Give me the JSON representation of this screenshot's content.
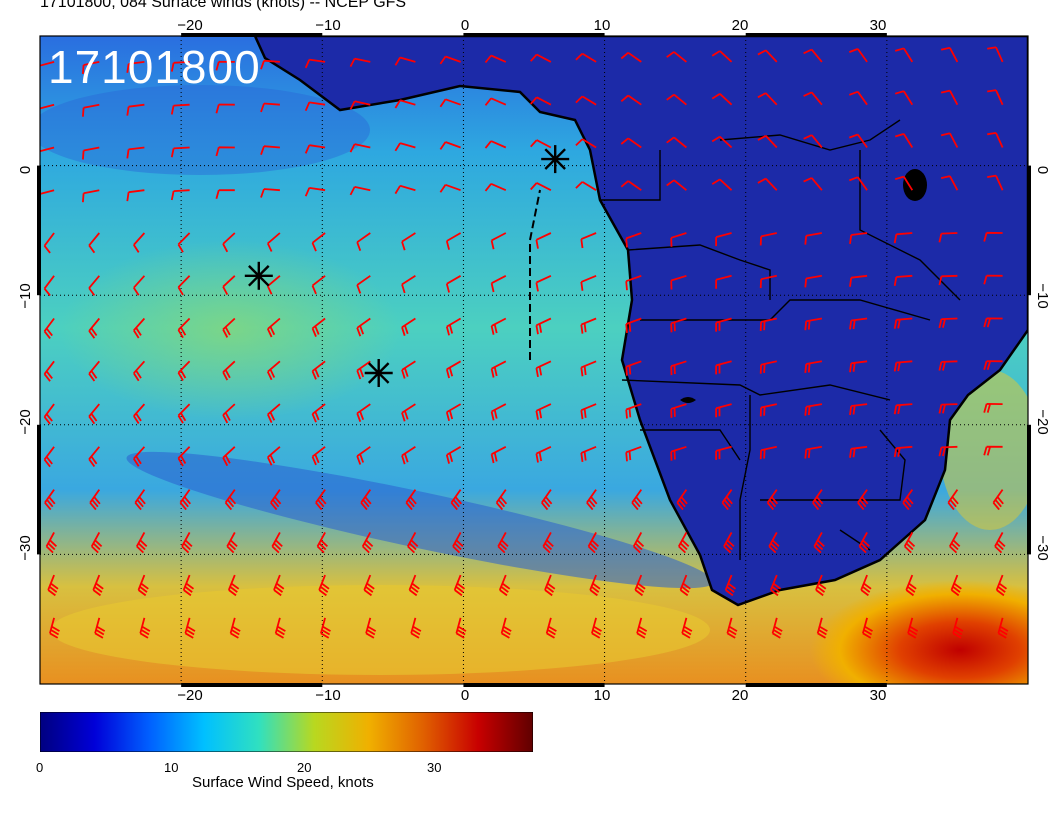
{
  "header": {
    "title": "17101800, 084 Surface winds (knots) -- NCEP GFS"
  },
  "map": {
    "stamp": "17101800",
    "top_ticks": [
      "−20",
      "−10",
      "0",
      "10",
      "20",
      "30"
    ],
    "bottom_ticks": [
      "−20",
      "−10",
      "0",
      "10",
      "20",
      "30"
    ],
    "left_ticks": [
      "0",
      "−10",
      "−20",
      "−30"
    ],
    "right_ticks": [
      "0",
      "−10",
      "−20",
      "−30"
    ],
    "lon_range": [
      -30,
      40
    ],
    "lat_range": [
      -40,
      10
    ],
    "storm_markers": [
      {
        "lon": 6.5,
        "lat": 0.5
      },
      {
        "lon": -14.5,
        "lat": -8.5
      },
      {
        "lon": -6,
        "lat": -16
      }
    ],
    "wind_barb_color": "#ff0000",
    "land_color": "#1c2aa8",
    "ocean_color": "#38b8d8"
  },
  "colorbar": {
    "title": "Surface Wind Speed, knots",
    "tick_labels": [
      "0",
      "10",
      "20",
      "30"
    ],
    "range": [
      0,
      37
    ],
    "colors": [
      "#000080",
      "#0000d8",
      "#0060ff",
      "#00c0ff",
      "#30e0c0",
      "#b8d820",
      "#f0b000",
      "#e06000",
      "#c80000",
      "#600000"
    ]
  }
}
